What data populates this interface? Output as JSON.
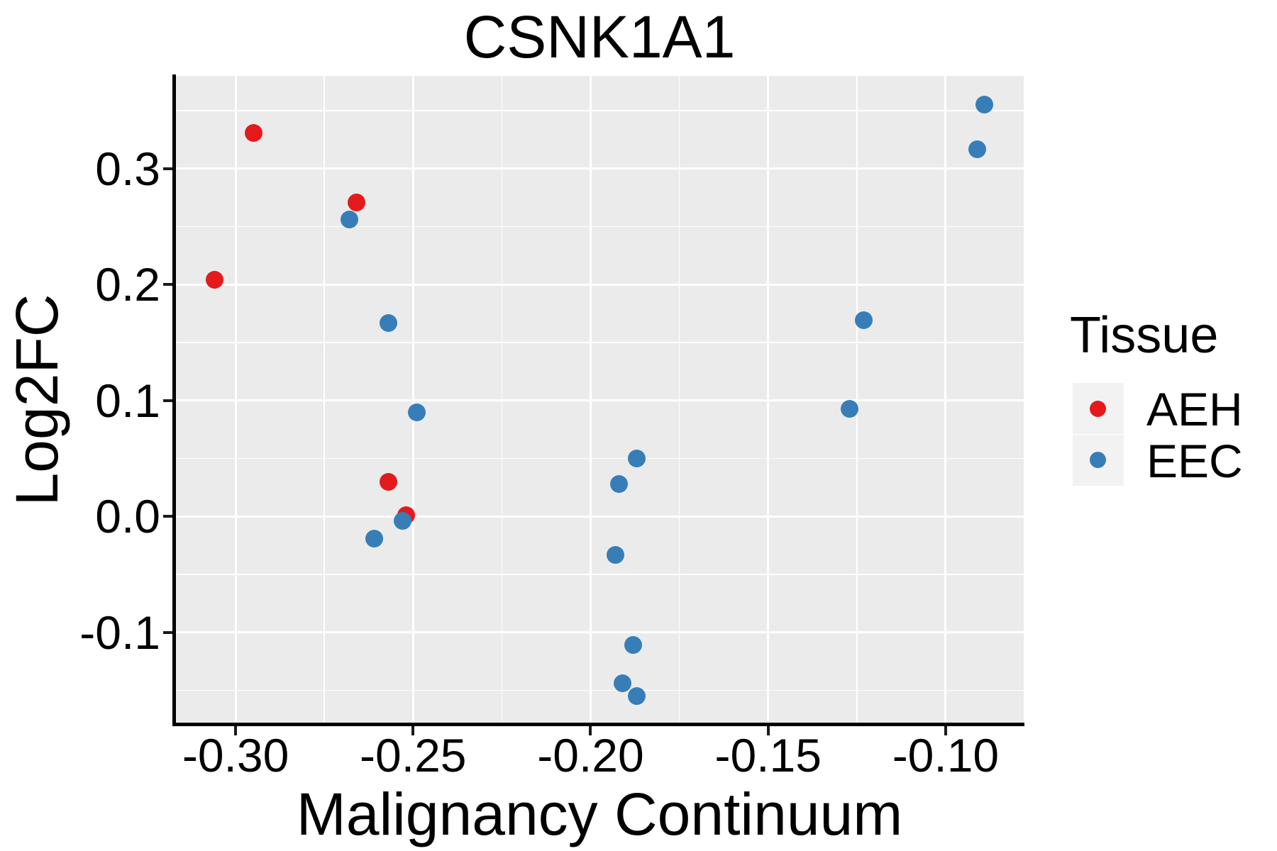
{
  "title": "CSNK1A1",
  "axes": {
    "x": {
      "label": "Malignancy Continuum",
      "tick_labels": [
        "-0.30",
        "-0.25",
        "-0.20",
        "-0.15",
        "-0.10"
      ],
      "tick_values": [
        -0.3,
        -0.25,
        -0.2,
        -0.15,
        -0.1
      ],
      "minor_values": [
        -0.275,
        -0.225,
        -0.175,
        -0.125
      ]
    },
    "y": {
      "label": "Log2FC",
      "tick_labels": [
        "0.3",
        "0.2",
        "0.1",
        "0.0",
        "-0.1"
      ],
      "tick_values": [
        0.3,
        0.2,
        0.1,
        0.0,
        -0.1
      ],
      "minor_values": [
        0.35,
        0.25,
        0.15,
        0.05,
        -0.05,
        -0.15
      ]
    }
  },
  "legend": {
    "title": "Tissue",
    "entries": [
      {
        "label": "AEH",
        "color": "#e41a1c"
      },
      {
        "label": "EEC",
        "color": "#377eb8"
      }
    ]
  },
  "colors": {
    "panel_background": "#ebebeb",
    "gridline": "#ffffff",
    "legend_key_background": "#f2f2f2",
    "axis": "#000000",
    "aeh": "#e41a1c",
    "eec": "#377eb8"
  },
  "chart_data": {
    "type": "scatter",
    "title": "CSNK1A1",
    "xlabel": "Malignancy Continuum",
    "ylabel": "Log2FC",
    "xlim": [
      -0.317,
      -0.078
    ],
    "ylim": [
      -0.179,
      0.38
    ],
    "grid": "major+minor",
    "legend_title": "Tissue",
    "legend_position": "right",
    "series": [
      {
        "name": "AEH",
        "color": "#e41a1c",
        "points": [
          [
            -0.295,
            0.331
          ],
          [
            -0.306,
            0.204
          ],
          [
            -0.266,
            0.271
          ],
          [
            -0.257,
            0.03
          ],
          [
            -0.252,
            0.001
          ]
        ]
      },
      {
        "name": "EEC",
        "color": "#377eb8",
        "points": [
          [
            -0.268,
            0.256
          ],
          [
            -0.257,
            0.167
          ],
          [
            -0.249,
            0.09
          ],
          [
            -0.253,
            -0.004
          ],
          [
            -0.261,
            -0.019
          ],
          [
            -0.187,
            0.05
          ],
          [
            -0.192,
            0.028
          ],
          [
            -0.193,
            -0.033
          ],
          [
            -0.188,
            -0.111
          ],
          [
            -0.191,
            -0.144
          ],
          [
            -0.187,
            -0.155
          ],
          [
            -0.123,
            0.169
          ],
          [
            -0.127,
            0.093
          ],
          [
            -0.089,
            0.355
          ],
          [
            -0.091,
            0.317
          ]
        ]
      }
    ]
  }
}
